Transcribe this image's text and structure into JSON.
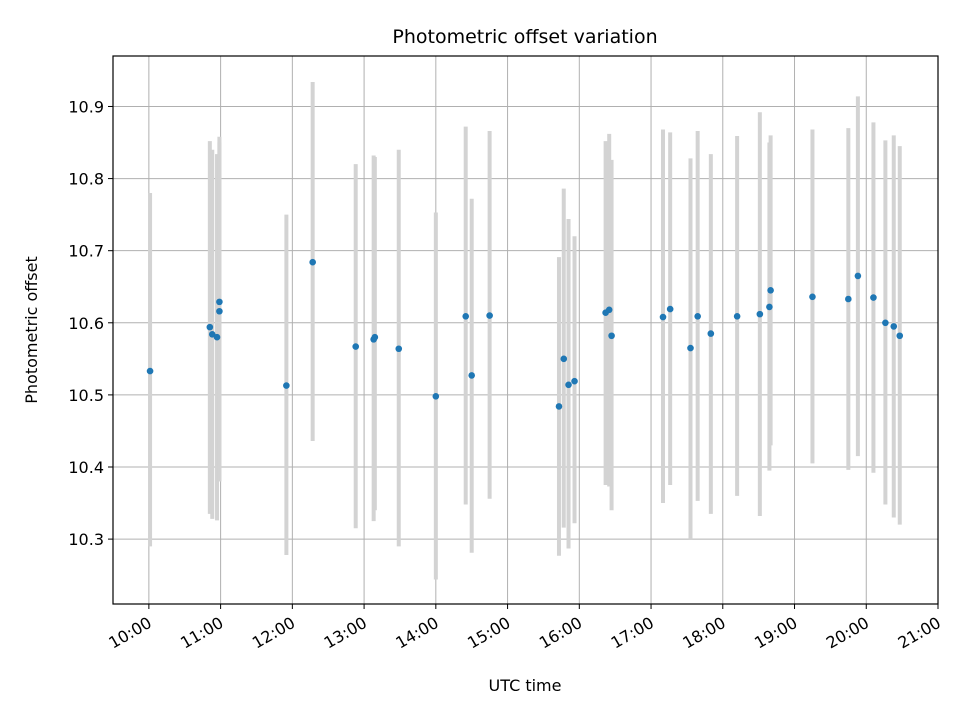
{
  "chart_data": {
    "type": "scatter",
    "title": "Photometric offset variation",
    "xlabel": "UTC time",
    "ylabel": "Photometric offset",
    "x_ticks": [
      "10:00",
      "11:00",
      "12:00",
      "13:00",
      "14:00",
      "15:00",
      "16:00",
      "17:00",
      "18:00",
      "19:00",
      "20:00",
      "21:00"
    ],
    "y_ticks": [
      "10.3",
      "10.4",
      "10.5",
      "10.6",
      "10.7",
      "10.8",
      "10.9"
    ],
    "ylim": [
      10.21,
      10.97
    ],
    "xlim": [
      "09:30",
      "21:00"
    ],
    "grid": true,
    "colors": {
      "points": "#1f77b4",
      "errorbars": "#d3d3d3",
      "grid": "#b0b0b0"
    },
    "points": [
      {
        "time": "10:01",
        "y": 10.533,
        "lo": 10.29,
        "hi": 10.78
      },
      {
        "time": "10:51",
        "y": 10.594,
        "lo": 10.335,
        "hi": 10.852
      },
      {
        "time": "10:53",
        "y": 10.584,
        "lo": 10.328,
        "hi": 10.84
      },
      {
        "time": "10:57",
        "y": 10.58,
        "lo": 10.326,
        "hi": 10.834
      },
      {
        "time": "10:59",
        "y": 10.629,
        "lo": 10.38,
        "hi": 10.858
      },
      {
        "time": "10:59",
        "y": 10.616,
        "lo": 10.38,
        "hi": 10.85
      },
      {
        "time": "11:55",
        "y": 10.513,
        "lo": 10.278,
        "hi": 10.75
      },
      {
        "time": "12:17",
        "y": 10.684,
        "lo": 10.436,
        "hi": 10.934
      },
      {
        "time": "12:53",
        "y": 10.567,
        "lo": 10.315,
        "hi": 10.82
      },
      {
        "time": "13:08",
        "y": 10.577,
        "lo": 10.325,
        "hi": 10.832
      },
      {
        "time": "13:09",
        "y": 10.58,
        "lo": 10.34,
        "hi": 10.83
      },
      {
        "time": "13:29",
        "y": 10.564,
        "lo": 10.29,
        "hi": 10.84
      },
      {
        "time": "14:00",
        "y": 10.498,
        "lo": 10.244,
        "hi": 10.753
      },
      {
        "time": "14:25",
        "y": 10.609,
        "lo": 10.348,
        "hi": 10.872
      },
      {
        "time": "14:30",
        "y": 10.527,
        "lo": 10.281,
        "hi": 10.772
      },
      {
        "time": "14:45",
        "y": 10.61,
        "lo": 10.356,
        "hi": 10.866
      },
      {
        "time": "15:43",
        "y": 10.484,
        "lo": 10.277,
        "hi": 10.691
      },
      {
        "time": "15:47",
        "y": 10.55,
        "lo": 10.316,
        "hi": 10.786
      },
      {
        "time": "15:51",
        "y": 10.514,
        "lo": 10.287,
        "hi": 10.744
      },
      {
        "time": "15:56",
        "y": 10.519,
        "lo": 10.322,
        "hi": 10.72
      },
      {
        "time": "16:22",
        "y": 10.614,
        "lo": 10.375,
        "hi": 10.852
      },
      {
        "time": "16:25",
        "y": 10.618,
        "lo": 10.373,
        "hi": 10.862
      },
      {
        "time": "16:27",
        "y": 10.582,
        "lo": 10.34,
        "hi": 10.826
      },
      {
        "time": "17:10",
        "y": 10.608,
        "lo": 10.35,
        "hi": 10.868
      },
      {
        "time": "17:16",
        "y": 10.619,
        "lo": 10.375,
        "hi": 10.864
      },
      {
        "time": "17:33",
        "y": 10.565,
        "lo": 10.3,
        "hi": 10.828
      },
      {
        "time": "17:39",
        "y": 10.609,
        "lo": 10.353,
        "hi": 10.866
      },
      {
        "time": "17:50",
        "y": 10.585,
        "lo": 10.335,
        "hi": 10.834
      },
      {
        "time": "18:12",
        "y": 10.609,
        "lo": 10.36,
        "hi": 10.859
      },
      {
        "time": "18:31",
        "y": 10.612,
        "lo": 10.332,
        "hi": 10.892
      },
      {
        "time": "18:39",
        "y": 10.622,
        "lo": 10.395,
        "hi": 10.85
      },
      {
        "time": "18:40",
        "y": 10.645,
        "lo": 10.43,
        "hi": 10.86
      },
      {
        "time": "19:15",
        "y": 10.636,
        "lo": 10.405,
        "hi": 10.868
      },
      {
        "time": "19:45",
        "y": 10.633,
        "lo": 10.396,
        "hi": 10.87
      },
      {
        "time": "19:53",
        "y": 10.665,
        "lo": 10.415,
        "hi": 10.914
      },
      {
        "time": "20:06",
        "y": 10.635,
        "lo": 10.392,
        "hi": 10.878
      },
      {
        "time": "20:16",
        "y": 10.6,
        "lo": 10.348,
        "hi": 10.853
      },
      {
        "time": "20:23",
        "y": 10.595,
        "lo": 10.33,
        "hi": 10.86
      },
      {
        "time": "20:28",
        "y": 10.582,
        "lo": 10.32,
        "hi": 10.845
      }
    ]
  }
}
